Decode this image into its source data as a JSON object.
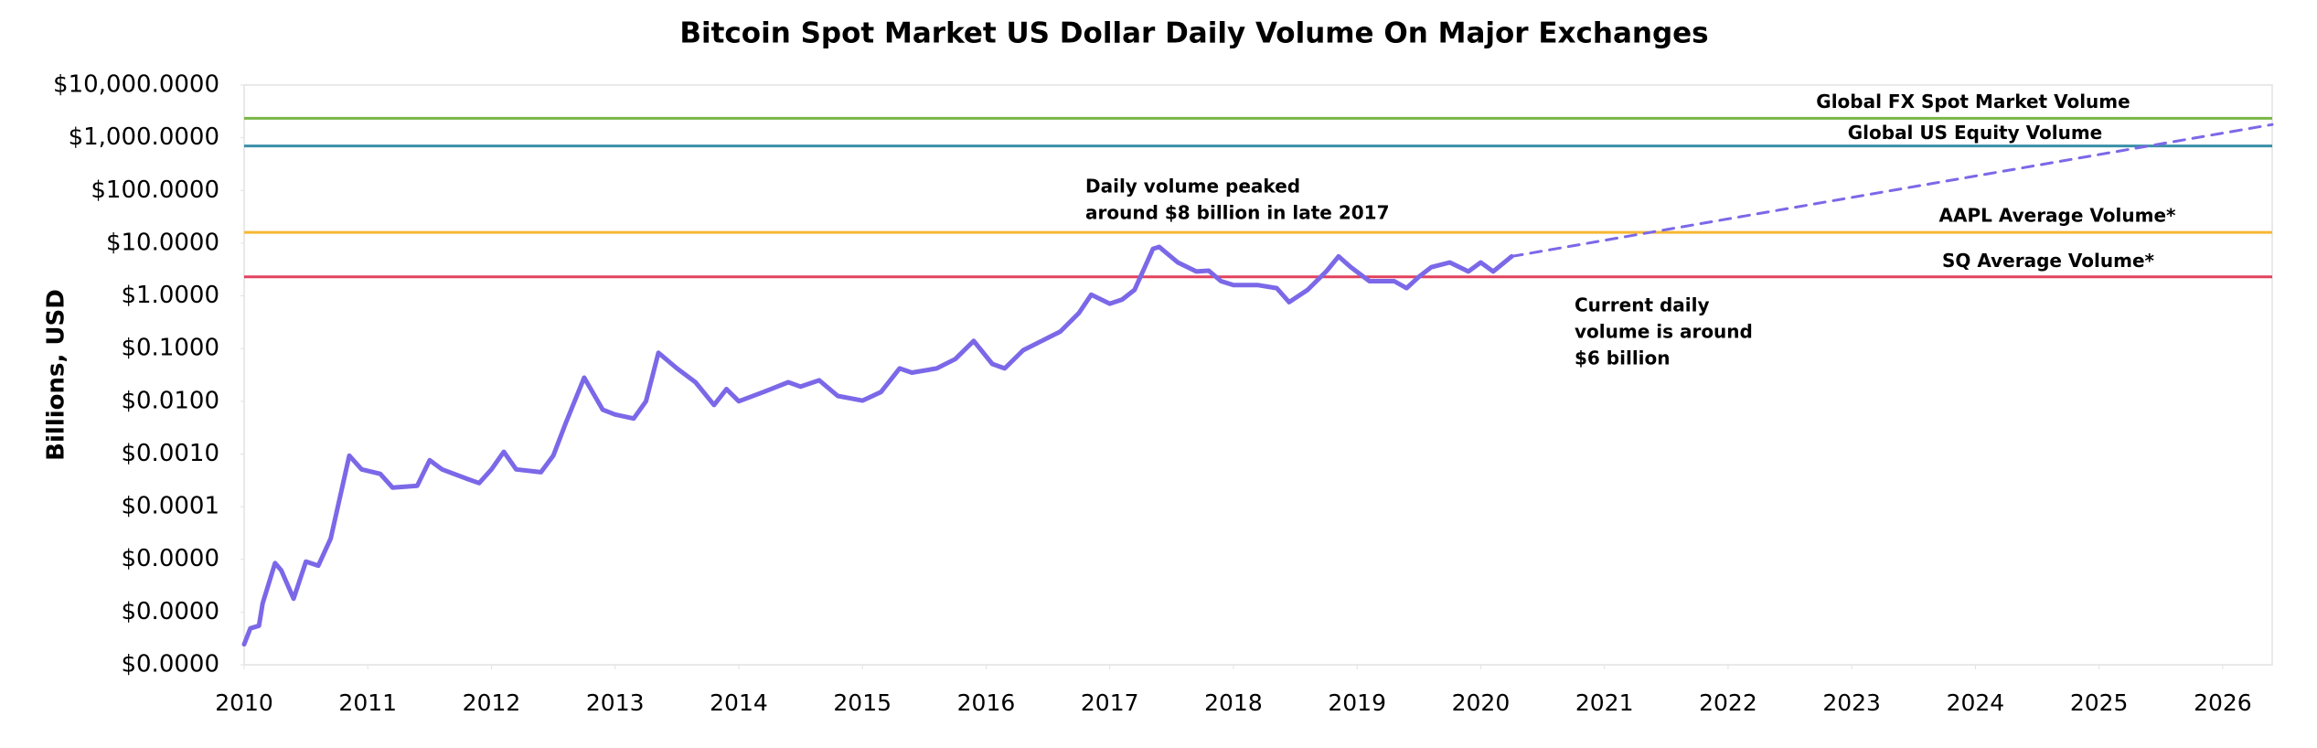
{
  "chart_data": {
    "type": "line",
    "title": "Bitcoin Spot Market US Dollar Daily Volume On Major Exchanges",
    "y_label": "Billions, USD",
    "log_y": true,
    "xlim": [
      2010,
      2026.4
    ],
    "xticks": [
      2010,
      2011,
      2012,
      2013,
      2014,
      2015,
      2016,
      2017,
      2018,
      2019,
      2020,
      2021,
      2022,
      2023,
      2024,
      2025,
      2026
    ],
    "ylim": [
      1e-07,
      10000
    ],
    "yticks": [
      {
        "value": 10000,
        "label": "$10,000.0000"
      },
      {
        "value": 1000,
        "label": "$1,000.0000"
      },
      {
        "value": 100,
        "label": "$100.0000"
      },
      {
        "value": 10,
        "label": "$10.0000"
      },
      {
        "value": 1,
        "label": "$1.0000"
      },
      {
        "value": 0.1,
        "label": "$0.1000"
      },
      {
        "value": 0.01,
        "label": "$0.0100"
      },
      {
        "value": 0.001,
        "label": "$0.0010"
      },
      {
        "value": 0.0001,
        "label": "$0.0001"
      },
      {
        "value": 1e-05,
        "label": "$0.0000"
      },
      {
        "value": 1e-06,
        "label": "$0.0000"
      },
      {
        "value": 1e-07,
        "label": "$0.0000"
      }
    ],
    "series": [
      {
        "color": "#7b68e8",
        "dashed": false,
        "x": [
          2010.0,
          2010.05,
          2010.12,
          2010.15,
          2010.25,
          2010.3,
          2010.4,
          2010.5,
          2010.6,
          2010.7,
          2010.85,
          2010.95,
          2011.1,
          2011.2,
          2011.4,
          2011.5,
          2011.6,
          2011.8,
          2011.9,
          2012.0,
          2012.1,
          2012.2,
          2012.4,
          2012.5,
          2012.6,
          2012.75,
          2012.9,
          2013.0,
          2013.15,
          2013.25,
          2013.35,
          2013.5,
          2013.65,
          2013.8,
          2013.9,
          2014.0,
          2014.2,
          2014.4,
          2014.5,
          2014.65,
          2014.8,
          2015.0,
          2015.15,
          2015.3,
          2015.4,
          2015.6,
          2015.75,
          2015.9,
          2016.05,
          2016.15,
          2016.3,
          2016.45,
          2016.6,
          2016.75,
          2016.85,
          2017.0,
          2017.1,
          2017.2,
          2017.35,
          2017.4,
          2017.55,
          2017.7,
          2017.8,
          2017.9,
          2018.0,
          2018.2,
          2018.35,
          2018.45,
          2018.6,
          2018.75,
          2018.85,
          2018.95,
          2019.1,
          2019.3,
          2019.4,
          2019.5,
          2019.6,
          2019.75,
          2019.9,
          2020.0,
          2020.1,
          2020.25
        ],
        "values": [
          2.45e-07,
          4.9e-07,
          5.5e-07,
          1.48e-06,
          8.5e-06,
          6.2e-06,
          1.8e-06,
          9.1e-06,
          7.6e-06,
          2.5e-05,
          0.00093,
          0.00051,
          0.00042,
          0.00023,
          0.00025,
          0.00076,
          0.00051,
          0.00034,
          0.00028,
          0.00051,
          0.0011,
          0.00051,
          0.00045,
          0.00093,
          0.0038,
          0.028,
          0.0069,
          0.0056,
          0.0047,
          0.01,
          0.083,
          0.042,
          0.023,
          0.0085,
          0.017,
          0.01,
          0.015,
          0.023,
          0.019,
          0.025,
          0.0126,
          0.0103,
          0.015,
          0.042,
          0.035,
          0.042,
          0.063,
          0.14,
          0.051,
          0.042,
          0.093,
          0.14,
          0.21,
          0.47,
          1.05,
          0.71,
          0.85,
          1.3,
          7.8,
          8.5,
          4.3,
          2.9,
          3.0,
          1.9,
          1.6,
          1.6,
          1.4,
          0.76,
          1.3,
          2.9,
          5.6,
          3.5,
          1.9,
          1.9,
          1.4,
          2.3,
          3.5,
          4.3,
          2.9,
          4.3,
          2.9,
          5.6
        ]
      },
      {
        "color": "#7b68e8",
        "dashed": true,
        "x": [
          2020.25,
          2026.4
        ],
        "values": [
          5.6,
          1780
        ]
      }
    ],
    "reference_lines": [
      {
        "label": "Global FX Spot Market Volume",
        "value": 2340,
        "color": "#7ab648"
      },
      {
        "label": "Global US Equity Volume",
        "value": 700,
        "color": "#3a8fa8"
      },
      {
        "label": "AAPL Average Volume*",
        "value": 16,
        "color": "#f7b733"
      },
      {
        "label": "SQ Average Volume*",
        "value": 2.3,
        "color": "#e2415c"
      }
    ],
    "annotations": [
      {
        "lines": [
          "Daily volume peaked",
          "around $8 billion in late 2017"
        ]
      },
      {
        "lines": [
          "Current daily",
          "volume is around",
          "$6 billion"
        ]
      }
    ]
  }
}
